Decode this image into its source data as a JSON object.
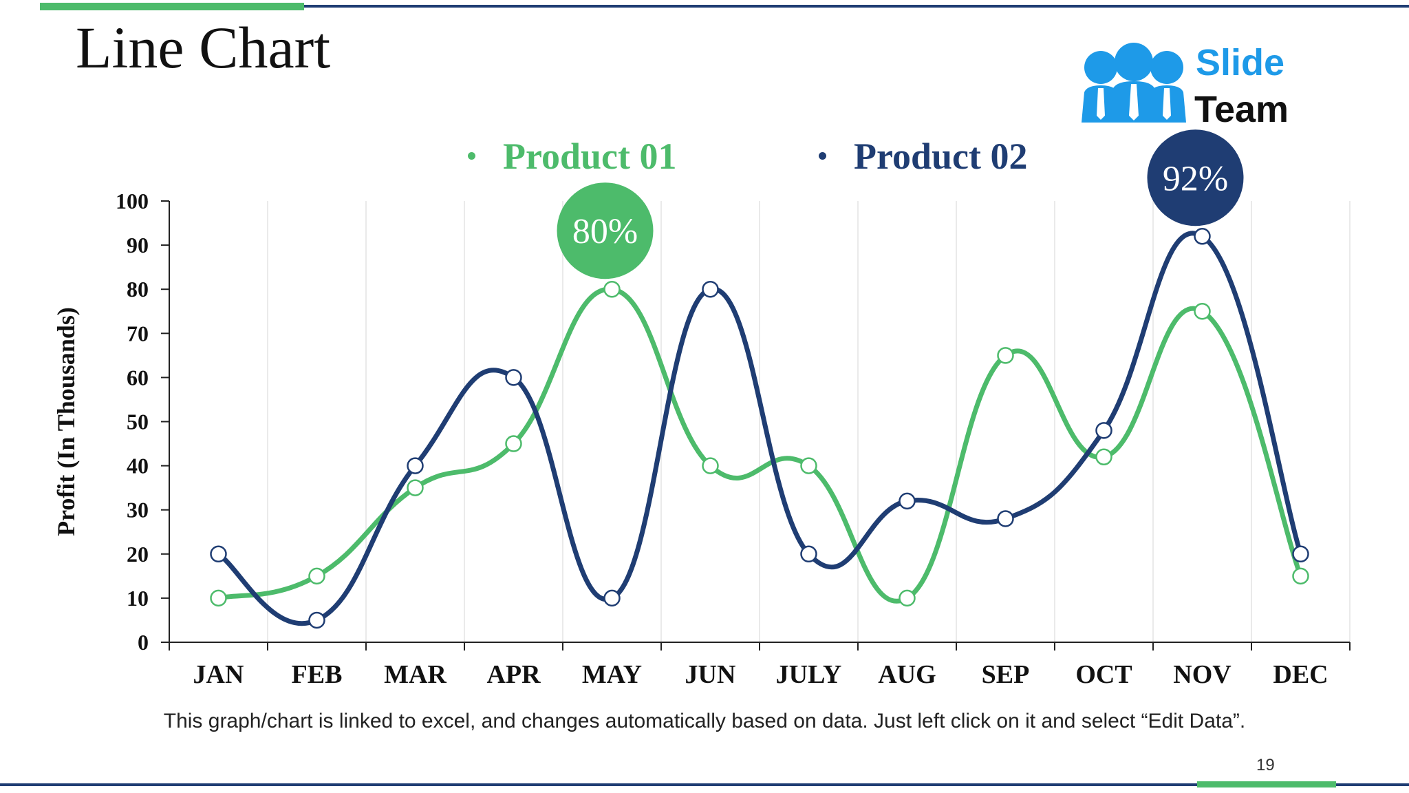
{
  "slide": {
    "title": "Line Chart",
    "caption": "This graph/chart is linked to excel, and changes automatically based on data. Just left click on it and select “Edit Data”.",
    "page_number": "19"
  },
  "logo": {
    "line1": "Slide",
    "line2": "Team",
    "icon": "people-group-icon"
  },
  "colors": {
    "product01": "#4dbb6b",
    "product02": "#1f3d73",
    "axis": "#222222",
    "grid": "#e3e3e3"
  },
  "chart_data": {
    "type": "line",
    "title": "",
    "xlabel": "",
    "ylabel": "Profit (In Thousands)",
    "ylim": [
      0,
      100
    ],
    "yticks": [
      0,
      10,
      20,
      30,
      40,
      50,
      60,
      70,
      80,
      90,
      100
    ],
    "categories": [
      "JAN",
      "FEB",
      "MAR",
      "APR",
      "MAY",
      "JUN",
      "JULY",
      "AUG",
      "SEP",
      "OCT",
      "NOV",
      "DEC"
    ],
    "grid": true,
    "legend_position": "top",
    "series": [
      {
        "name": "Product 01",
        "values": [
          10,
          15,
          35,
          45,
          80,
          40,
          40,
          10,
          65,
          42,
          75,
          15
        ]
      },
      {
        "name": "Product 02",
        "values": [
          20,
          5,
          40,
          60,
          10,
          80,
          20,
          32,
          28,
          48,
          92,
          20
        ]
      }
    ],
    "annotations": [
      {
        "series": 0,
        "category": "MAY",
        "label": "80%"
      },
      {
        "series": 1,
        "category": "NOV",
        "label": "92%"
      }
    ]
  }
}
